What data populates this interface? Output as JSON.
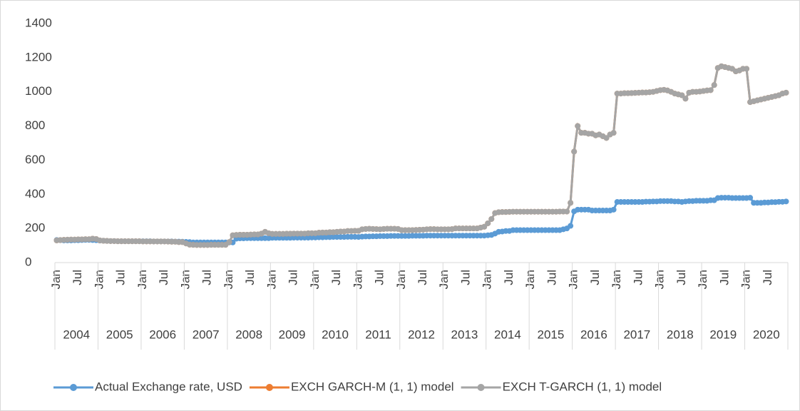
{
  "chart_data": {
    "type": "line",
    "categories": [
      "Jan",
      null,
      null,
      null,
      null,
      null,
      "Jul",
      null,
      null,
      null,
      null,
      null,
      "Jan",
      null,
      null,
      null,
      null,
      null,
      "Jul",
      null,
      null,
      null,
      null,
      null,
      "Jan",
      null,
      null,
      null,
      null,
      null,
      "Jul",
      null,
      null,
      null,
      null,
      null,
      "Jan",
      null,
      null,
      null,
      null,
      null,
      "Jul",
      null,
      null,
      null,
      null,
      null,
      "Jan",
      null,
      null,
      null,
      null,
      null,
      "Jul",
      null,
      null,
      null,
      null,
      null,
      "Jan",
      null,
      null,
      null,
      null,
      null,
      "Jul",
      null,
      null,
      null,
      null,
      null,
      "Jan",
      null,
      null,
      null,
      null,
      null,
      "Jul",
      null,
      null,
      null,
      null,
      null,
      "Jan",
      null,
      null,
      null,
      null,
      null,
      "Jul",
      null,
      null,
      null,
      null,
      null,
      "Jan",
      null,
      null,
      null,
      null,
      null,
      "Jul",
      null,
      null,
      null,
      null,
      null,
      "Jan",
      null,
      null,
      null,
      null,
      null,
      "Jul",
      null,
      null,
      null,
      null,
      null,
      "Jan",
      null,
      null,
      null,
      null,
      null,
      "Jul",
      null,
      null,
      null,
      null,
      null,
      "Jan",
      null,
      null,
      null,
      null,
      null,
      "Jul",
      null,
      null,
      null,
      null,
      null,
      "Jan",
      null,
      null,
      null,
      null,
      null,
      "Jul",
      null,
      null,
      null,
      null,
      null,
      "Jan",
      null,
      null,
      null,
      null,
      null,
      "Jul",
      null,
      null,
      null,
      null,
      null,
      "Jan",
      null,
      null,
      null,
      null,
      null,
      "Jul",
      null,
      null,
      null,
      null,
      null,
      "Jan",
      null,
      null,
      null,
      null,
      null,
      "Jul",
      null,
      null,
      null,
      null,
      null,
      "Jan",
      null,
      null,
      null,
      null,
      null,
      "Jul",
      null,
      null,
      null,
      null,
      null
    ],
    "years": [
      "2004",
      "2005",
      "2006",
      "2007",
      "2008",
      "2009",
      "2010",
      "2011",
      "2012",
      "2013",
      "2014",
      "2015",
      "2016",
      "2017",
      "2018",
      "2019",
      "2020"
    ],
    "series": [
      {
        "name": "Actual Exchange rate, USD",
        "color": "#5b9bd5",
        "values": [
          132,
          131,
          130,
          130,
          130,
          131,
          131,
          132,
          133,
          133,
          132,
          131,
          129,
          128,
          127,
          126,
          126,
          125,
          125,
          125,
          125,
          125,
          125,
          125,
          125,
          125,
          125,
          124,
          124,
          124,
          124,
          124,
          124,
          123,
          123,
          122,
          121,
          120,
          118,
          118,
          118,
          118,
          118,
          118,
          118,
          118,
          118,
          118,
          118,
          118,
          140,
          142,
          142,
          143,
          143,
          143,
          143,
          143,
          143,
          143,
          145,
          145,
          145,
          145,
          145,
          145,
          146,
          146,
          146,
          146,
          146,
          147,
          147,
          148,
          148,
          149,
          149,
          150,
          150,
          150,
          150,
          151,
          151,
          151,
          150,
          152,
          153,
          153,
          154,
          154,
          155,
          155,
          155,
          156,
          156,
          156,
          156,
          156,
          156,
          157,
          157,
          157,
          157,
          158,
          158,
          158,
          158,
          158,
          158,
          158,
          158,
          158,
          158,
          158,
          158,
          158,
          158,
          158,
          158,
          158,
          160,
          162,
          170,
          180,
          182,
          185,
          185,
          190,
          190,
          190,
          190,
          190,
          190,
          190,
          190,
          190,
          190,
          190,
          190,
          190,
          190,
          195,
          200,
          215,
          300,
          310,
          310,
          310,
          310,
          305,
          305,
          305,
          305,
          305,
          305,
          310,
          355,
          355,
          355,
          355,
          355,
          355,
          355,
          355,
          357,
          357,
          358,
          358,
          360,
          360,
          360,
          360,
          358,
          358,
          355,
          358,
          360,
          360,
          362,
          362,
          362,
          362,
          365,
          365,
          378,
          380,
          380,
          380,
          378,
          378,
          378,
          378,
          378,
          380,
          350,
          350,
          350,
          352,
          352,
          354,
          354,
          356,
          356,
          358
        ]
      },
      {
        "name": "EXCH GARCH-M (1, 1) model",
        "color": "#ed7d31",
        "values": [
          130,
          132,
          133,
          134,
          135,
          135,
          136,
          136,
          137,
          137,
          140,
          138,
          130,
          128,
          127,
          126,
          126,
          125,
          125,
          125,
          125,
          125,
          125,
          125,
          124,
          124,
          124,
          124,
          124,
          124,
          124,
          123,
          122,
          122,
          120,
          120,
          112,
          105,
          104,
          103,
          103,
          103,
          103,
          104,
          104,
          104,
          104,
          104,
          120,
          160,
          162,
          163,
          163,
          163,
          164,
          165,
          165,
          170,
          180,
          172,
          168,
          168,
          168,
          168,
          169,
          169,
          170,
          170,
          170,
          170,
          172,
          172,
          172,
          175,
          176,
          176,
          178,
          178,
          180,
          182,
          182,
          185,
          185,
          186,
          186,
          195,
          197,
          198,
          197,
          196,
          195,
          197,
          198,
          198,
          198,
          197,
          190,
          190,
          190,
          190,
          191,
          192,
          193,
          195,
          196,
          196,
          195,
          195,
          195,
          195,
          196,
          200,
          200,
          200,
          200,
          200,
          200,
          200,
          205,
          210,
          230,
          255,
          290,
          295,
          296,
          296,
          297,
          298,
          298,
          298,
          298,
          298,
          298,
          298,
          298,
          298,
          298,
          298,
          298,
          298,
          299,
          299,
          299,
          350,
          650,
          800,
          760,
          760,
          755,
          755,
          745,
          750,
          740,
          730,
          750,
          760,
          990,
          990,
          992,
          992,
          993,
          994,
          995,
          996,
          996,
          998,
          1000,
          1005,
          1010,
          1012,
          1008,
          1000,
          990,
          985,
          980,
          960,
          995,
          1000,
          1000,
          1002,
          1005,
          1008,
          1010,
          1040,
          1140,
          1150,
          1145,
          1140,
          1135,
          1120,
          1125,
          1135,
          1135,
          940,
          945,
          950,
          955,
          960,
          965,
          970,
          975,
          980,
          990,
          995
        ]
      },
      {
        "name": "EXCH T-GARCH (1, 1) model",
        "color": "#a5a5a5",
        "values": [
          130,
          132,
          133,
          134,
          135,
          135,
          136,
          136,
          137,
          137,
          140,
          138,
          130,
          128,
          127,
          126,
          126,
          125,
          125,
          125,
          125,
          125,
          125,
          125,
          124,
          124,
          124,
          124,
          124,
          124,
          124,
          123,
          122,
          122,
          120,
          120,
          112,
          105,
          104,
          103,
          103,
          103,
          103,
          104,
          104,
          104,
          104,
          104,
          120,
          160,
          162,
          163,
          163,
          163,
          164,
          165,
          165,
          170,
          180,
          172,
          168,
          168,
          168,
          168,
          169,
          169,
          170,
          170,
          170,
          170,
          172,
          172,
          172,
          175,
          176,
          176,
          178,
          178,
          180,
          182,
          182,
          185,
          185,
          186,
          186,
          195,
          197,
          198,
          197,
          196,
          195,
          197,
          198,
          198,
          198,
          197,
          190,
          190,
          190,
          190,
          191,
          192,
          193,
          195,
          196,
          196,
          195,
          195,
          195,
          195,
          196,
          200,
          200,
          200,
          200,
          200,
          200,
          200,
          205,
          210,
          230,
          255,
          290,
          295,
          296,
          296,
          297,
          298,
          298,
          298,
          298,
          298,
          298,
          298,
          298,
          298,
          298,
          298,
          298,
          298,
          299,
          299,
          299,
          350,
          650,
          800,
          760,
          760,
          755,
          755,
          745,
          750,
          740,
          730,
          750,
          760,
          990,
          990,
          992,
          992,
          993,
          994,
          995,
          996,
          996,
          998,
          1000,
          1005,
          1010,
          1012,
          1008,
          1000,
          990,
          985,
          980,
          960,
          995,
          1000,
          1000,
          1002,
          1005,
          1008,
          1010,
          1040,
          1140,
          1150,
          1145,
          1140,
          1135,
          1120,
          1125,
          1135,
          1135,
          940,
          945,
          950,
          955,
          960,
          965,
          970,
          975,
          980,
          990,
          995
        ]
      }
    ],
    "ylim": [
      0,
      1400
    ],
    "yticks": [
      0,
      200,
      400,
      600,
      800,
      1000,
      1200,
      1400
    ],
    "legend": "bottom"
  }
}
